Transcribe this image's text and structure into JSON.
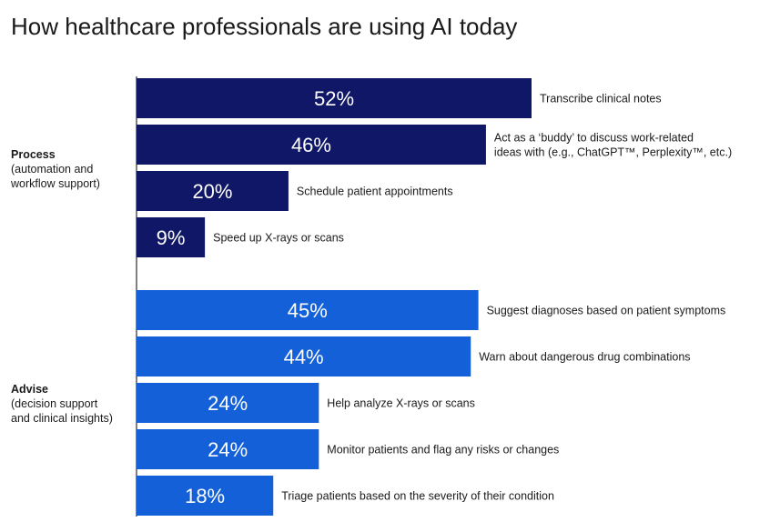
{
  "title": "How healthcare professionals are using AI today",
  "colors": {
    "process": "#101767",
    "advise": "#1360D9"
  },
  "groups": [
    {
      "name": "Process",
      "description": "(automation and\nworkflow support)"
    },
    {
      "name": "Advise",
      "description": "(decision support\nand clinical insights)"
    }
  ],
  "chart_data": {
    "type": "bar",
    "orientation": "horizontal",
    "title": "How healthcare professionals are using AI today",
    "xlim": [
      0,
      100
    ],
    "grid": false,
    "legend": "none",
    "bars": [
      {
        "group": 0,
        "value": 52,
        "value_label": "52%",
        "label": [
          "Transcribe clinical notes"
        ]
      },
      {
        "group": 0,
        "value": 46,
        "value_label": "46%",
        "label": [
          "Act as a ‘buddy’ to discuss work-related",
          "ideas with (e.g., ChatGPT™, Perplexity™, etc.)"
        ]
      },
      {
        "group": 0,
        "value": 20,
        "value_label": "20%",
        "label": [
          "Schedule patient appointments"
        ]
      },
      {
        "group": 0,
        "value": 9,
        "value_label": "9%",
        "label": [
          "Speed up X-rays or scans"
        ]
      },
      {
        "group": 1,
        "value": 45,
        "value_label": "45%",
        "label": [
          "Suggest diagnoses based on patient symptoms"
        ]
      },
      {
        "group": 1,
        "value": 44,
        "value_label": "44%",
        "label": [
          "Warn about dangerous drug combinations"
        ]
      },
      {
        "group": 1,
        "value": 24,
        "value_label": "24%",
        "label": [
          "Help analyze X-rays or scans"
        ]
      },
      {
        "group": 1,
        "value": 24,
        "value_label": "24%",
        "label": [
          "Monitor patients and flag any risks or changes"
        ]
      },
      {
        "group": 1,
        "value": 18,
        "value_label": "18%",
        "label": [
          "Triage patients based on the severity of their condition"
        ]
      }
    ]
  }
}
